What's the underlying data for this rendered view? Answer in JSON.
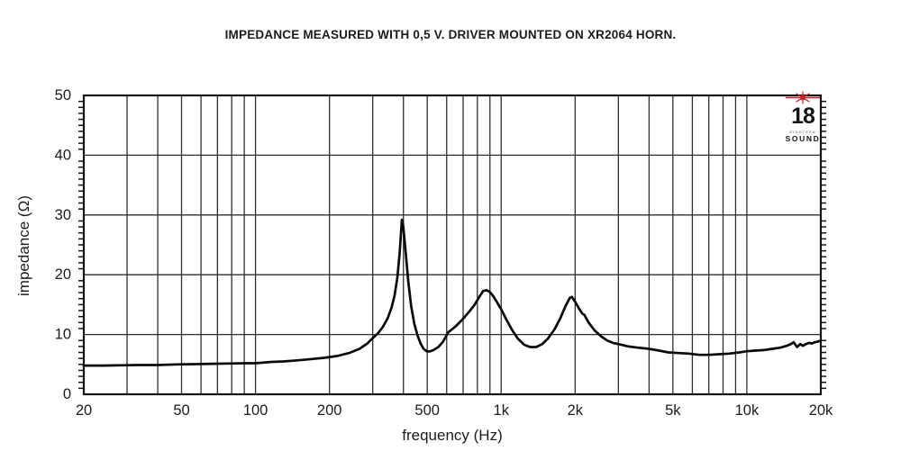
{
  "page": {
    "background": "#ffffff"
  },
  "logo": {
    "number": "18",
    "brand_small": "EIGHTEEN",
    "brand": "SOUND",
    "star_color": "#c2252c"
  },
  "chart_data": {
    "type": "line",
    "title": "IMPEDANCE MEASURED WITH 0,5 V. DRIVER MOUNTED ON XR2064 HORN.",
    "xlabel": "frequency (Hz)",
    "ylabel": "impedance (Ω)",
    "x_scale": "log",
    "xlim": [
      20,
      20000
    ],
    "ylim": [
      0,
      50
    ],
    "grid": true,
    "legend": "none",
    "grid_color": "#2e2e2e",
    "axis_color": "#141414",
    "line_color": "#0a0a0a",
    "text_color": "#1c1c1c",
    "y_ticks": [
      0,
      10,
      20,
      30,
      40,
      50
    ],
    "y_minor_step": 1,
    "x_ticks": [
      {
        "f": 20,
        "label": "20"
      },
      {
        "f": 50,
        "label": "50"
      },
      {
        "f": 100,
        "label": "100"
      },
      {
        "f": 200,
        "label": "200"
      },
      {
        "f": 500,
        "label": "500"
      },
      {
        "f": 1000,
        "label": "1k"
      },
      {
        "f": 2000,
        "label": "2k"
      },
      {
        "f": 5000,
        "label": "5k"
      },
      {
        "f": 10000,
        "label": "10k"
      },
      {
        "f": 20000,
        "label": "20k"
      }
    ],
    "x_gridlines": [
      20,
      30,
      40,
      50,
      60,
      70,
      80,
      90,
      100,
      200,
      300,
      400,
      500,
      600,
      700,
      800,
      900,
      1000,
      2000,
      3000,
      4000,
      5000,
      6000,
      7000,
      8000,
      9000,
      10000,
      20000
    ],
    "points": [
      [
        20,
        4.8
      ],
      [
        24,
        4.8
      ],
      [
        28,
        4.85
      ],
      [
        33,
        4.9
      ],
      [
        40,
        4.9
      ],
      [
        48,
        5.0
      ],
      [
        57,
        5.05
      ],
      [
        67,
        5.1
      ],
      [
        78,
        5.15
      ],
      [
        90,
        5.2
      ],
      [
        100,
        5.2
      ],
      [
        115,
        5.4
      ],
      [
        130,
        5.5
      ],
      [
        150,
        5.7
      ],
      [
        170,
        5.9
      ],
      [
        190,
        6.1
      ],
      [
        215,
        6.4
      ],
      [
        240,
        6.9
      ],
      [
        265,
        7.6
      ],
      [
        285,
        8.5
      ],
      [
        300,
        9.4
      ],
      [
        315,
        10.2
      ],
      [
        330,
        11.3
      ],
      [
        345,
        12.7
      ],
      [
        358,
        14.5
      ],
      [
        368,
        16.5
      ],
      [
        378,
        19.5
      ],
      [
        386,
        23.5
      ],
      [
        391,
        27.0
      ],
      [
        394,
        29.2
      ],
      [
        398,
        28.6
      ],
      [
        403,
        26.5
      ],
      [
        410,
        23.0
      ],
      [
        419,
        18.8
      ],
      [
        430,
        14.8
      ],
      [
        443,
        11.8
      ],
      [
        457,
        9.8
      ],
      [
        470,
        8.5
      ],
      [
        483,
        7.6
      ],
      [
        497,
        7.2
      ],
      [
        510,
        7.15
      ],
      [
        530,
        7.4
      ],
      [
        555,
        7.9
      ],
      [
        580,
        8.8
      ],
      [
        610,
        10.4
      ],
      [
        650,
        11.3
      ],
      [
        695,
        12.5
      ],
      [
        740,
        13.8
      ],
      [
        780,
        15.0
      ],
      [
        815,
        16.3
      ],
      [
        845,
        17.3
      ],
      [
        875,
        17.4
      ],
      [
        900,
        17.1
      ],
      [
        925,
        16.5
      ],
      [
        955,
        15.6
      ],
      [
        1000,
        14.2
      ],
      [
        1050,
        12.5
      ],
      [
        1110,
        10.7
      ],
      [
        1170,
        9.3
      ],
      [
        1240,
        8.3
      ],
      [
        1310,
        7.9
      ],
      [
        1390,
        7.9
      ],
      [
        1470,
        8.4
      ],
      [
        1550,
        9.3
      ],
      [
        1650,
        10.9
      ],
      [
        1740,
        12.7
      ],
      [
        1830,
        14.8
      ],
      [
        1900,
        16.1
      ],
      [
        1940,
        16.3
      ],
      [
        2000,
        15.5
      ],
      [
        2070,
        14.4
      ],
      [
        2140,
        13.5
      ],
      [
        2180,
        13.3
      ],
      [
        2270,
        12.0
      ],
      [
        2400,
        10.7
      ],
      [
        2550,
        9.7
      ],
      [
        2700,
        9.0
      ],
      [
        2850,
        8.6
      ],
      [
        3000,
        8.4
      ],
      [
        3300,
        8.0
      ],
      [
        3600,
        7.8
      ],
      [
        4000,
        7.6
      ],
      [
        4400,
        7.3
      ],
      [
        4800,
        7.0
      ],
      [
        5300,
        6.9
      ],
      [
        5800,
        6.8
      ],
      [
        6400,
        6.6
      ],
      [
        7000,
        6.6
      ],
      [
        7700,
        6.7
      ],
      [
        8500,
        6.8
      ],
      [
        9300,
        7.0
      ],
      [
        10000,
        7.2
      ],
      [
        10800,
        7.3
      ],
      [
        11700,
        7.4
      ],
      [
        12700,
        7.6
      ],
      [
        13700,
        7.8
      ],
      [
        14500,
        8.1
      ],
      [
        15100,
        8.4
      ],
      [
        15500,
        8.7
      ],
      [
        16000,
        7.9
      ],
      [
        16500,
        8.4
      ],
      [
        16900,
        8.1
      ],
      [
        17400,
        8.4
      ],
      [
        17900,
        8.6
      ],
      [
        18400,
        8.5
      ],
      [
        18900,
        8.7
      ],
      [
        19400,
        8.8
      ],
      [
        20000,
        9.0
      ]
    ]
  }
}
